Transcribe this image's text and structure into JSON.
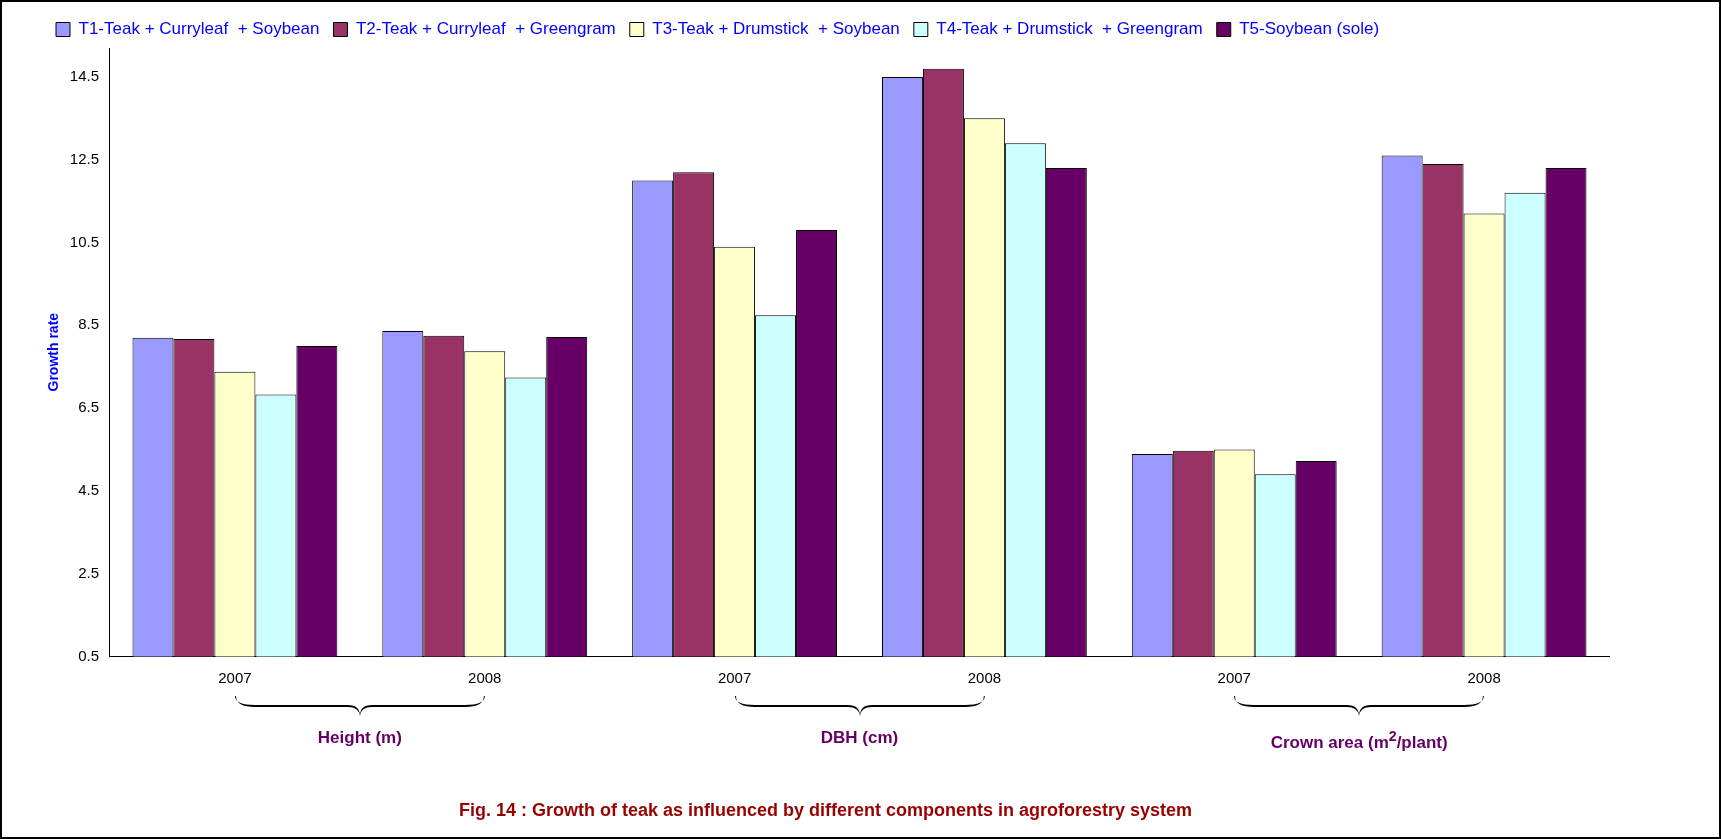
{
  "chart_data": {
    "type": "bar",
    "title": "Fig. 14 : Growth of teak as influenced by different components in agroforestry system",
    "ylabel": "Growth rate",
    "categories": [
      "2007",
      "2008",
      "2007",
      "2008",
      "2007",
      "2008"
    ],
    "annotations": [
      "Height (m)",
      "DBH (cm)",
      "Crown area (m$^{2}$/plant)"
    ],
    "series": [
      {
        "name": "T1-Teak + Curryleaf  + Soybean",
        "color": "#9999ff",
        "values": [
          8.2,
          8.36,
          12.0,
          14.5,
          5.39,
          12.6
        ]
      },
      {
        "name": "T2-Teak + Curryleaf  + Greengram",
        "color": "#993366",
        "values": [
          8.17,
          8.25,
          12.2,
          14.7,
          5.47,
          12.4
        ]
      },
      {
        "name": "T3-Teak + Drumstick  + Soybean",
        "color": "#ffffcc",
        "values": [
          7.38,
          7.87,
          10.4,
          13.5,
          5.5,
          11.2
        ]
      },
      {
        "name": "T4-Teak + Drumstick  + Greengram",
        "color": "#ccffff",
        "values": [
          6.83,
          7.24,
          8.74,
          12.9,
          4.9,
          11.7
        ]
      },
      {
        "name": "T5-Soybean (sole)",
        "color": "#660066",
        "values": [
          8.0,
          8.22,
          10.8,
          12.3,
          5.22,
          12.3
        ]
      }
    ],
    "ylim": [
      0.5,
      15.2
    ],
    "yticks": [
      0.5,
      2.5,
      4.5,
      6.5,
      8.5,
      10.5,
      12.5,
      14.5
    ],
    "grid": false,
    "legend": "top"
  }
}
